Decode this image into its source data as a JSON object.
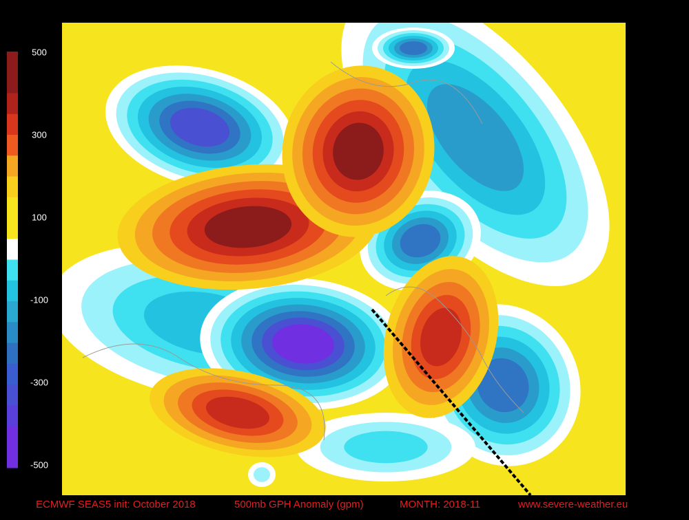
{
  "colorbar": {
    "ticks": [
      500,
      300,
      100,
      -100,
      -300,
      -500
    ]
  },
  "footer": {
    "model": "ECMWF SEAS5 init: October 2018",
    "field": "500mb GPH Anomaly (gpm)",
    "month": "MONTH: 2018-11",
    "site": "www.severe-weather.eu"
  }
}
